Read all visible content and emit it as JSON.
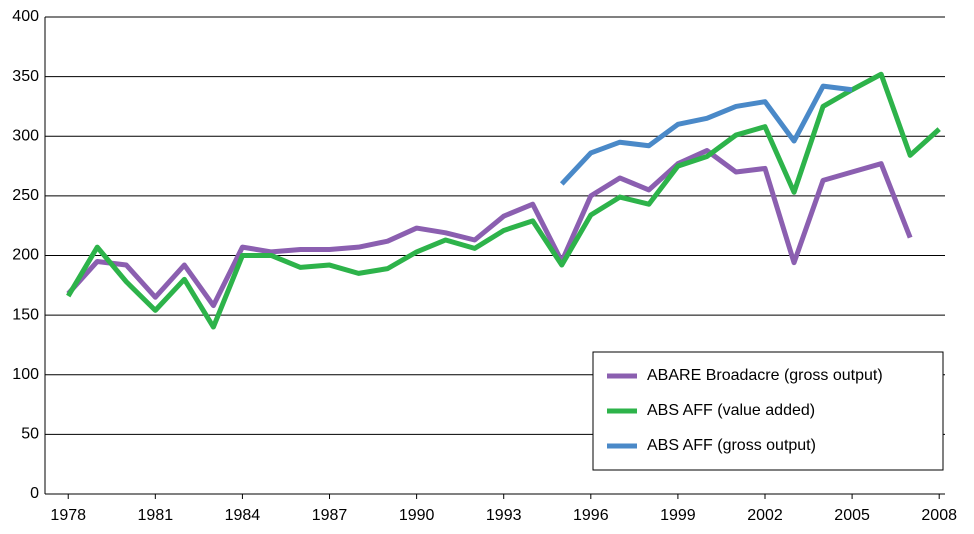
{
  "chart_data": {
    "type": "line",
    "x": [
      1978,
      1979,
      1980,
      1981,
      1982,
      1983,
      1984,
      1985,
      1986,
      1987,
      1988,
      1989,
      1990,
      1991,
      1992,
      1993,
      1994,
      1995,
      1996,
      1997,
      1998,
      1999,
      2000,
      2001,
      2002,
      2003,
      2004,
      2005,
      2006,
      2007,
      2008
    ],
    "series": [
      {
        "name": "ABARE Broadacre (gross output)",
        "color": "#8b5fb0",
        "values": [
          168,
          195,
          192,
          165,
          192,
          158,
          207,
          203,
          205,
          205,
          207,
          212,
          223,
          219,
          213,
          233,
          243,
          195,
          250,
          265,
          255,
          277,
          288,
          270,
          273,
          194,
          263,
          270,
          277,
          215,
          null
        ]
      },
      {
        "name": "ABS AFF (value added)",
        "color": "#2db34a",
        "values": [
          166,
          207,
          178,
          154,
          180,
          140,
          200,
          200,
          190,
          192,
          185,
          189,
          203,
          213,
          206,
          221,
          229,
          192,
          234,
          249,
          243,
          275,
          283,
          301,
          308,
          253,
          325,
          339,
          352,
          284,
          306
        ]
      },
      {
        "name": "ABS AFF (gross output)",
        "color": "#4a89c8",
        "values": [
          null,
          null,
          null,
          null,
          null,
          null,
          null,
          null,
          null,
          null,
          null,
          null,
          null,
          null,
          null,
          null,
          null,
          260,
          286,
          295,
          292,
          310,
          315,
          325,
          329,
          296,
          342,
          339,
          null,
          null,
          null
        ]
      }
    ],
    "xlim": [
      1977.2,
      2008.2
    ],
    "xticks": [
      1978,
      1981,
      1984,
      1987,
      1990,
      1993,
      1996,
      1999,
      2002,
      2005,
      2008
    ],
    "ylim": [
      0,
      400
    ],
    "yticks": [
      0,
      50,
      100,
      150,
      200,
      250,
      300,
      350,
      400
    ],
    "grid": true,
    "legend": "lower right"
  }
}
